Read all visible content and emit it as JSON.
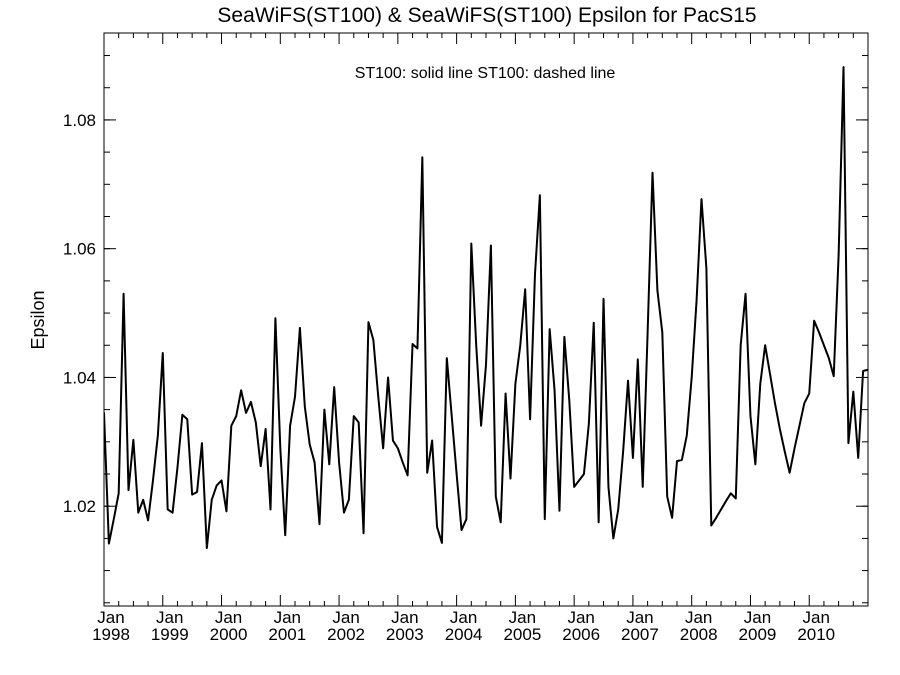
{
  "chart_data": {
    "type": "line",
    "title": "SeaWiFS(ST100) & SeaWiFS(ST100)  Epsilon for PacS15",
    "annotation": "ST100: solid line   ST100: dashed line",
    "xlabel": "",
    "ylabel": "Epsilon",
    "xlim": [
      "1998-01",
      "2011-01"
    ],
    "ylim": [
      1.0045,
      1.0935
    ],
    "x_ticks": [
      {
        "month": "Jan",
        "year": "1998",
        "date": "1998-01"
      },
      {
        "month": "Jan",
        "year": "1999",
        "date": "1999-01"
      },
      {
        "month": "Jan",
        "year": "2000",
        "date": "2000-01"
      },
      {
        "month": "Jan",
        "year": "2001",
        "date": "2001-01"
      },
      {
        "month": "Jan",
        "year": "2002",
        "date": "2002-01"
      },
      {
        "month": "Jan",
        "year": "2003",
        "date": "2003-01"
      },
      {
        "month": "Jan",
        "year": "2004",
        "date": "2004-01"
      },
      {
        "month": "Jan",
        "year": "2005",
        "date": "2005-01"
      },
      {
        "month": "Jan",
        "year": "2006",
        "date": "2006-01"
      },
      {
        "month": "Jan",
        "year": "2007",
        "date": "2007-01"
      },
      {
        "month": "Jan",
        "year": "2008",
        "date": "2008-01"
      },
      {
        "month": "Jan",
        "year": "2009",
        "date": "2009-01"
      },
      {
        "month": "Jan",
        "year": "2010",
        "date": "2010-01"
      }
    ],
    "y_ticks": [
      {
        "value": 1.02,
        "label": "1.02"
      },
      {
        "value": 1.04,
        "label": "1.04"
      },
      {
        "value": 1.06,
        "label": "1.06"
      },
      {
        "value": 1.08,
        "label": "1.08"
      }
    ],
    "grid": false,
    "series": [
      {
        "style": "solid",
        "color": "#000000",
        "points": [
          [
            "1997-12",
            1.011
          ],
          [
            "1998-01",
            1.0345
          ],
          [
            "1998-02",
            1.0142
          ],
          [
            "1998-03",
            1.018
          ],
          [
            "1998-04",
            1.022
          ],
          [
            "1998-05",
            1.053
          ],
          [
            "1998-06",
            1.0225
          ],
          [
            "1998-07",
            1.0303
          ],
          [
            "1998-08",
            1.019
          ],
          [
            "1998-09",
            1.021
          ],
          [
            "1998-10",
            1.0178
          ],
          [
            "1998-11",
            1.024
          ],
          [
            "1998-12",
            1.031
          ],
          [
            "1999-01",
            1.0438
          ],
          [
            "1999-02",
            1.0195
          ],
          [
            "1999-03",
            1.019
          ],
          [
            "1999-04",
            1.026
          ],
          [
            "1999-05",
            1.0342
          ],
          [
            "1999-06",
            1.0335
          ],
          [
            "1999-07",
            1.0218
          ],
          [
            "1999-08",
            1.0222
          ],
          [
            "1999-09",
            1.0298
          ],
          [
            "1999-10",
            1.0135
          ],
          [
            "1999-11",
            1.021
          ],
          [
            "1999-12",
            1.0232
          ],
          [
            "2000-01",
            1.024
          ],
          [
            "2000-02",
            1.0192
          ],
          [
            "2000-03",
            1.0325
          ],
          [
            "2000-04",
            1.034
          ],
          [
            "2000-05",
            1.038
          ],
          [
            "2000-06",
            1.0345
          ],
          [
            "2000-07",
            1.0362
          ],
          [
            "2000-08",
            1.033
          ],
          [
            "2000-09",
            1.0262
          ],
          [
            "2000-10",
            1.032
          ],
          [
            "2000-11",
            1.0195
          ],
          [
            "2000-12",
            1.0492
          ],
          [
            "2001-01",
            1.029
          ],
          [
            "2001-02",
            1.0155
          ],
          [
            "2001-03",
            1.0325
          ],
          [
            "2001-04",
            1.037
          ],
          [
            "2001-05",
            1.0477
          ],
          [
            "2001-06",
            1.0355
          ],
          [
            "2001-07",
            1.0296
          ],
          [
            "2001-08",
            1.0268
          ],
          [
            "2001-09",
            1.0172
          ],
          [
            "2001-10",
            1.035
          ],
          [
            "2001-11",
            1.0265
          ],
          [
            "2001-12",
            1.0385
          ],
          [
            "2002-01",
            1.0268
          ],
          [
            "2002-02",
            1.019
          ],
          [
            "2002-03",
            1.021
          ],
          [
            "2002-04",
            1.034
          ],
          [
            "2002-05",
            1.033
          ],
          [
            "2002-06",
            1.0158
          ],
          [
            "2002-07",
            1.0486
          ],
          [
            "2002-08",
            1.0458
          ],
          [
            "2002-09",
            1.037
          ],
          [
            "2002-10",
            1.029
          ],
          [
            "2002-11",
            1.04
          ],
          [
            "2002-12",
            1.0302
          ],
          [
            "2003-01",
            1.029
          ],
          [
            "2003-02",
            1.0268
          ],
          [
            "2003-03",
            1.0248
          ],
          [
            "2003-04",
            1.0452
          ],
          [
            "2003-05",
            1.0445
          ],
          [
            "2003-06",
            1.0742
          ],
          [
            "2003-07",
            1.0252
          ],
          [
            "2003-08",
            1.0302
          ],
          [
            "2003-09",
            1.0168
          ],
          [
            "2003-10",
            1.0143
          ],
          [
            "2003-11",
            1.043
          ],
          [
            "2003-12",
            1.034
          ],
          [
            "2004-01",
            1.025
          ],
          [
            "2004-02",
            1.0163
          ],
          [
            "2004-03",
            1.018
          ],
          [
            "2004-04",
            1.0608
          ],
          [
            "2004-05",
            1.045
          ],
          [
            "2004-06",
            1.0325
          ],
          [
            "2004-07",
            1.042
          ],
          [
            "2004-08",
            1.0605
          ],
          [
            "2004-09",
            1.0215
          ],
          [
            "2004-10",
            1.0175
          ],
          [
            "2004-11",
            1.0375
          ],
          [
            "2004-12",
            1.0243
          ],
          [
            "2005-01",
            1.039
          ],
          [
            "2005-02",
            1.045
          ],
          [
            "2005-03",
            1.0537
          ],
          [
            "2005-04",
            1.0335
          ],
          [
            "2005-05",
            1.056
          ],
          [
            "2005-06",
            1.0683
          ],
          [
            "2005-07",
            1.018
          ],
          [
            "2005-08",
            1.0475
          ],
          [
            "2005-09",
            1.038
          ],
          [
            "2005-10",
            1.0193
          ],
          [
            "2005-11",
            1.0463
          ],
          [
            "2005-12",
            1.0365
          ],
          [
            "2006-01",
            1.023
          ],
          [
            "2006-02",
            1.024
          ],
          [
            "2006-03",
            1.025
          ],
          [
            "2006-04",
            1.0328
          ],
          [
            "2006-05",
            1.0485
          ],
          [
            "2006-06",
            1.0175
          ],
          [
            "2006-07",
            1.0522
          ],
          [
            "2006-08",
            1.023
          ],
          [
            "2006-09",
            1.015
          ],
          [
            "2006-10",
            1.0195
          ],
          [
            "2006-11",
            1.0285
          ],
          [
            "2006-12",
            1.0395
          ],
          [
            "2007-01",
            1.0275
          ],
          [
            "2007-02",
            1.0428
          ],
          [
            "2007-03",
            1.023
          ],
          [
            "2007-04",
            1.047
          ],
          [
            "2007-05",
            1.0718
          ],
          [
            "2007-06",
            1.0535
          ],
          [
            "2007-07",
            1.047
          ],
          [
            "2007-08",
            1.0215
          ],
          [
            "2007-09",
            1.0182
          ],
          [
            "2007-10",
            1.027
          ],
          [
            "2007-11",
            1.0272
          ],
          [
            "2007-12",
            1.031
          ],
          [
            "2008-01",
            1.04
          ],
          [
            "2008-02",
            1.052
          ],
          [
            "2008-03",
            1.0677
          ],
          [
            "2008-04",
            1.057
          ],
          [
            "2008-05",
            1.017
          ],
          [
            "2008-06",
            1.0182
          ],
          [
            "2008-07",
            1.0195
          ],
          [
            "2008-08",
            1.0208
          ],
          [
            "2008-09",
            1.022
          ],
          [
            "2008-10",
            1.0212
          ],
          [
            "2008-11",
            1.045
          ],
          [
            "2008-12",
            1.053
          ],
          [
            "2009-01",
            1.034
          ],
          [
            "2009-02",
            1.0265
          ],
          [
            "2009-03",
            1.039
          ],
          [
            "2009-04",
            1.045
          ],
          [
            "2009-05",
            1.0405
          ],
          [
            "2009-06",
            1.036
          ],
          [
            "2009-07",
            1.032
          ],
          [
            "2009-08",
            1.0285
          ],
          [
            "2009-09",
            1.0252
          ],
          [
            "2009-10",
            1.029
          ],
          [
            "2009-11",
            1.0325
          ],
          [
            "2009-12",
            1.036
          ],
          [
            "2010-01",
            1.0375
          ],
          [
            "2010-02",
            1.0488
          ],
          [
            "2010-03",
            1.047
          ],
          [
            "2010-04",
            1.045
          ],
          [
            "2010-05",
            1.043
          ],
          [
            "2010-06",
            1.0402
          ],
          [
            "2010-07",
            1.059
          ],
          [
            "2010-08",
            1.0882
          ],
          [
            "2010-09",
            1.0298
          ],
          [
            "2010-10",
            1.0378
          ],
          [
            "2010-11",
            1.0275
          ],
          [
            "2010-12",
            1.041
          ],
          [
            "2011-01",
            1.0412
          ]
        ]
      }
    ]
  }
}
